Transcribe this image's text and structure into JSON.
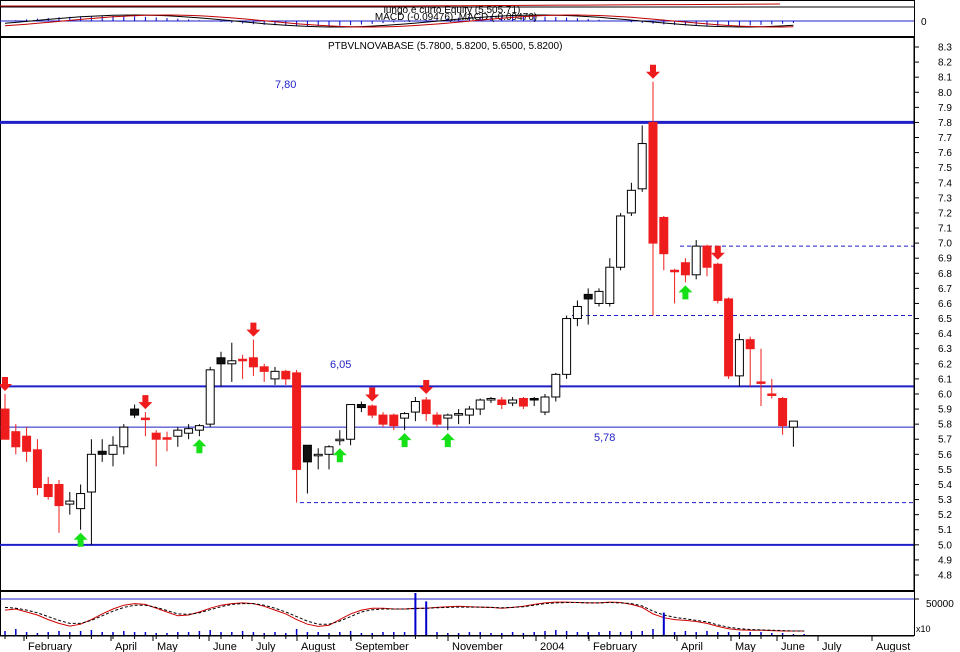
{
  "top_panel": {
    "title": "lungo e curto Equity (5,505.71)",
    "subtitle": "MACD (-0.09476), MACD (-0.09476)",
    "zero_label": "0",
    "colors": {
      "equity": "#c00000",
      "macd": "#000000",
      "hist": "#0000cc"
    }
  },
  "chart_data": [
    {
      "type": "candlestick",
      "title": "PTBVLNOVABASE (5.7800, 5.8200, 5.6500, 5.8200)",
      "ylim": [
        4.6,
        8.3
      ],
      "y_ticks": [
        4.8,
        4.9,
        5.0,
        5.1,
        5.2,
        5.3,
        5.4,
        5.5,
        5.6,
        5.7,
        5.8,
        5.9,
        6.0,
        6.1,
        6.2,
        6.3,
        6.4,
        6.5,
        6.6,
        6.7,
        6.8,
        6.9,
        7.0,
        7.1,
        7.2,
        7.3,
        7.4,
        7.5,
        7.6,
        7.7,
        7.8,
        7.9,
        8.0,
        8.1,
        8.2,
        8.3
      ],
      "x_labels": [
        "February",
        "April",
        "May",
        "June",
        "July",
        "August",
        "September",
        "November",
        "2004",
        "February",
        "April",
        "May",
        "June",
        "July",
        "August"
      ],
      "candles": [
        {
          "o": 5.9,
          "h": 6.0,
          "l": 5.7,
          "c": 5.7,
          "color": "red"
        },
        {
          "o": 5.75,
          "h": 5.8,
          "l": 5.6,
          "c": 5.65,
          "color": "red"
        },
        {
          "o": 5.72,
          "h": 5.78,
          "l": 5.55,
          "c": 5.62,
          "color": "red"
        },
        {
          "o": 5.63,
          "h": 5.7,
          "l": 5.33,
          "c": 5.38,
          "color": "red"
        },
        {
          "o": 5.4,
          "h": 5.45,
          "l": 5.3,
          "c": 5.32,
          "color": "red"
        },
        {
          "o": 5.4,
          "h": 5.43,
          "l": 5.08,
          "c": 5.26,
          "color": "red"
        },
        {
          "o": 5.29,
          "h": 5.35,
          "l": 5.2,
          "c": 5.27,
          "color": "white"
        },
        {
          "o": 5.24,
          "h": 5.4,
          "l": 5.1,
          "c": 5.34,
          "color": "white"
        },
        {
          "o": 5.35,
          "h": 5.7,
          "l": 5.0,
          "c": 5.6,
          "color": "white"
        },
        {
          "o": 5.6,
          "h": 5.7,
          "l": 5.55,
          "c": 5.62,
          "color": "black"
        },
        {
          "o": 5.6,
          "h": 5.72,
          "l": 5.52,
          "c": 5.66,
          "color": "white"
        },
        {
          "o": 5.65,
          "h": 5.8,
          "l": 5.6,
          "c": 5.78,
          "color": "white"
        },
        {
          "o": 5.9,
          "h": 5.93,
          "l": 5.84,
          "c": 5.86,
          "color": "black"
        },
        {
          "o": 5.84,
          "h": 5.88,
          "l": 5.72,
          "c": 5.84,
          "color": "red"
        },
        {
          "o": 5.74,
          "h": 5.76,
          "l": 5.52,
          "c": 5.7,
          "color": "red"
        },
        {
          "o": 5.71,
          "h": 5.75,
          "l": 5.62,
          "c": 5.7,
          "color": "red"
        },
        {
          "o": 5.72,
          "h": 5.78,
          "l": 5.65,
          "c": 5.76,
          "color": "white"
        },
        {
          "o": 5.74,
          "h": 5.8,
          "l": 5.7,
          "c": 5.77,
          "color": "white"
        },
        {
          "o": 5.76,
          "h": 5.8,
          "l": 5.72,
          "c": 5.79,
          "color": "white"
        },
        {
          "o": 5.8,
          "h": 6.18,
          "l": 5.78,
          "c": 6.16,
          "color": "white"
        },
        {
          "o": 6.24,
          "h": 6.28,
          "l": 6.05,
          "c": 6.2,
          "color": "black"
        },
        {
          "o": 6.2,
          "h": 6.34,
          "l": 6.08,
          "c": 6.22,
          "color": "white"
        },
        {
          "o": 6.23,
          "h": 6.26,
          "l": 6.1,
          "c": 6.22,
          "color": "red"
        },
        {
          "o": 6.24,
          "h": 6.36,
          "l": 6.12,
          "c": 6.18,
          "color": "red"
        },
        {
          "o": 6.18,
          "h": 6.2,
          "l": 6.08,
          "c": 6.15,
          "color": "red"
        },
        {
          "o": 6.1,
          "h": 6.18,
          "l": 6.06,
          "c": 6.15,
          "color": "white"
        },
        {
          "o": 6.15,
          "h": 6.16,
          "l": 6.06,
          "c": 6.1,
          "color": "red"
        },
        {
          "o": 6.14,
          "h": 6.16,
          "l": 5.28,
          "c": 5.5,
          "color": "red"
        },
        {
          "o": 5.55,
          "h": 5.66,
          "l": 5.34,
          "c": 5.66,
          "color": "black"
        },
        {
          "o": 5.6,
          "h": 5.64,
          "l": 5.5,
          "c": 5.6,
          "color": "white"
        },
        {
          "o": 5.6,
          "h": 5.66,
          "l": 5.5,
          "c": 5.65,
          "color": "white"
        },
        {
          "o": 5.7,
          "h": 5.76,
          "l": 5.66,
          "c": 5.7,
          "color": "white"
        },
        {
          "o": 5.7,
          "h": 5.93,
          "l": 5.66,
          "c": 5.93,
          "color": "white"
        },
        {
          "o": 5.93,
          "h": 5.95,
          "l": 5.88,
          "c": 5.91,
          "color": "black"
        },
        {
          "o": 5.92,
          "h": 5.93,
          "l": 5.84,
          "c": 5.86,
          "color": "red"
        },
        {
          "o": 5.86,
          "h": 5.88,
          "l": 5.78,
          "c": 5.8,
          "color": "red"
        },
        {
          "o": 5.86,
          "h": 5.87,
          "l": 5.76,
          "c": 5.79,
          "color": "red"
        },
        {
          "o": 5.84,
          "h": 5.88,
          "l": 5.76,
          "c": 5.87,
          "color": "white"
        },
        {
          "o": 5.88,
          "h": 5.98,
          "l": 5.82,
          "c": 5.95,
          "color": "white"
        },
        {
          "o": 5.96,
          "h": 5.98,
          "l": 5.82,
          "c": 5.87,
          "color": "red"
        },
        {
          "o": 5.86,
          "h": 5.88,
          "l": 5.78,
          "c": 5.8,
          "color": "red"
        },
        {
          "o": 5.84,
          "h": 5.87,
          "l": 5.76,
          "c": 5.86,
          "color": "white"
        },
        {
          "o": 5.86,
          "h": 5.9,
          "l": 5.8,
          "c": 5.87,
          "color": "white"
        },
        {
          "o": 5.86,
          "h": 5.92,
          "l": 5.8,
          "c": 5.9,
          "color": "white"
        },
        {
          "o": 5.9,
          "h": 5.97,
          "l": 5.86,
          "c": 5.96,
          "color": "white"
        },
        {
          "o": 5.96,
          "h": 5.98,
          "l": 5.94,
          "c": 5.97,
          "color": "white"
        },
        {
          "o": 5.96,
          "h": 5.98,
          "l": 5.9,
          "c": 5.93,
          "color": "red"
        },
        {
          "o": 5.94,
          "h": 5.98,
          "l": 5.92,
          "c": 5.96,
          "color": "white"
        },
        {
          "o": 5.97,
          "h": 5.98,
          "l": 5.9,
          "c": 5.92,
          "color": "red"
        },
        {
          "o": 5.97,
          "h": 5.98,
          "l": 5.92,
          "c": 5.96,
          "color": "black"
        },
        {
          "o": 5.88,
          "h": 6.0,
          "l": 5.86,
          "c": 5.98,
          "color": "white"
        },
        {
          "o": 5.98,
          "h": 6.14,
          "l": 5.95,
          "c": 6.13,
          "color": "white"
        },
        {
          "o": 6.13,
          "h": 6.52,
          "l": 6.1,
          "c": 6.5,
          "color": "white"
        },
        {
          "o": 6.5,
          "h": 6.62,
          "l": 6.45,
          "c": 6.58,
          "color": "white"
        },
        {
          "o": 6.66,
          "h": 6.7,
          "l": 6.46,
          "c": 6.63,
          "color": "black"
        },
        {
          "o": 6.6,
          "h": 6.7,
          "l": 6.58,
          "c": 6.68,
          "color": "white"
        },
        {
          "o": 6.6,
          "h": 6.9,
          "l": 6.58,
          "c": 6.84,
          "color": "white"
        },
        {
          "o": 6.84,
          "h": 7.2,
          "l": 6.82,
          "c": 7.18,
          "color": "white"
        },
        {
          "o": 7.2,
          "h": 7.4,
          "l": 7.18,
          "c": 7.35,
          "color": "white"
        },
        {
          "o": 7.36,
          "h": 7.78,
          "l": 7.34,
          "c": 7.66,
          "color": "white"
        },
        {
          "o": 7.8,
          "h": 8.07,
          "l": 6.52,
          "c": 7.0,
          "color": "red"
        },
        {
          "o": 7.17,
          "h": 7.18,
          "l": 6.82,
          "c": 6.93,
          "color": "red"
        },
        {
          "o": 6.82,
          "h": 6.83,
          "l": 6.6,
          "c": 6.81,
          "color": "red"
        },
        {
          "o": 6.87,
          "h": 6.9,
          "l": 6.74,
          "c": 6.79,
          "color": "red"
        },
        {
          "o": 6.79,
          "h": 7.02,
          "l": 6.76,
          "c": 6.98,
          "color": "white"
        },
        {
          "o": 6.98,
          "h": 6.99,
          "l": 6.78,
          "c": 6.84,
          "color": "red"
        },
        {
          "o": 6.86,
          "h": 6.87,
          "l": 6.6,
          "c": 6.62,
          "color": "red"
        },
        {
          "o": 6.63,
          "h": 6.64,
          "l": 6.1,
          "c": 6.12,
          "color": "red"
        },
        {
          "o": 6.12,
          "h": 6.4,
          "l": 6.05,
          "c": 6.36,
          "color": "white"
        },
        {
          "o": 6.36,
          "h": 6.38,
          "l": 6.05,
          "c": 6.3,
          "color": "red"
        },
        {
          "o": 6.08,
          "h": 6.3,
          "l": 5.92,
          "c": 6.07,
          "color": "red"
        },
        {
          "o": 6.0,
          "h": 6.1,
          "l": 5.97,
          "c": 5.99,
          "color": "red"
        },
        {
          "o": 5.97,
          "h": 5.98,
          "l": 5.73,
          "c": 5.79,
          "color": "red"
        },
        {
          "o": 5.78,
          "h": 5.82,
          "l": 5.65,
          "c": 5.82,
          "color": "white"
        }
      ],
      "horizontal_lines": [
        {
          "value": 7.8,
          "label": "7,80",
          "style": "solid-thick"
        },
        {
          "value": 6.05,
          "label": "6,05",
          "style": "solid"
        },
        {
          "value": 5.78,
          "label": "5,78",
          "style": "solid-thin"
        },
        {
          "value": 5.0,
          "label": "",
          "style": "solid"
        }
      ],
      "dashed_levels": [
        6.98,
        6.52,
        5.28
      ],
      "sell_signals": [
        0,
        13,
        23,
        34,
        39,
        60,
        66
      ],
      "buy_signals": [
        7,
        18,
        31,
        37,
        41,
        63
      ],
      "colors": {
        "up": "#ffffff",
        "down": "#ee1c1c",
        "neutral": "#111111",
        "levels": "#1f1fc8",
        "sell": "#ee1c1c",
        "buy": "#16e016"
      }
    },
    {
      "type": "line",
      "title": "",
      "y_ticks": [
        50000
      ],
      "series": [
        {
          "style": "solid",
          "color": "#d00000",
          "values": [
            0.55,
            0.58,
            0.5,
            0.42,
            0.3,
            0.2,
            0.13,
            0.18,
            0.3,
            0.45,
            0.58,
            0.68,
            0.72,
            0.7,
            0.6,
            0.5,
            0.4,
            0.42,
            0.5,
            0.6,
            0.68,
            0.72,
            0.74,
            0.72,
            0.65,
            0.55,
            0.45,
            0.3,
            0.18,
            0.12,
            0.15,
            0.3,
            0.45,
            0.55,
            0.6,
            0.6,
            0.58,
            0.58,
            0.6,
            0.6,
            0.62,
            0.64,
            0.65,
            0.64,
            0.63,
            0.62,
            0.6,
            0.62,
            0.65,
            0.7,
            0.74,
            0.76,
            0.76,
            0.75,
            0.74,
            0.74,
            0.76,
            0.75,
            0.7,
            0.62,
            0.45,
            0.35,
            0.3,
            0.28,
            0.25,
            0.2,
            0.12,
            0.06,
            0.03,
            0.02,
            0.02,
            0.01,
            0.0,
            0.0,
            0.0
          ]
        },
        {
          "style": "dashed",
          "color": "#000000",
          "values": [
            0.62,
            0.6,
            0.55,
            0.48,
            0.38,
            0.28,
            0.2,
            0.2,
            0.28,
            0.4,
            0.52,
            0.62,
            0.68,
            0.68,
            0.62,
            0.54,
            0.45,
            0.44,
            0.48,
            0.56,
            0.64,
            0.7,
            0.72,
            0.72,
            0.68,
            0.6,
            0.5,
            0.38,
            0.26,
            0.18,
            0.18,
            0.26,
            0.38,
            0.5,
            0.56,
            0.58,
            0.58,
            0.58,
            0.59,
            0.6,
            0.61,
            0.62,
            0.63,
            0.63,
            0.63,
            0.62,
            0.61,
            0.62,
            0.64,
            0.68,
            0.72,
            0.74,
            0.75,
            0.75,
            0.74,
            0.74,
            0.75,
            0.74,
            0.72,
            0.66,
            0.52,
            0.42,
            0.36,
            0.32,
            0.28,
            0.24,
            0.16,
            0.1,
            0.06,
            0.04,
            0.03,
            0.02,
            0.01,
            0.0,
            0.0
          ]
        }
      ],
      "volume_bars": [
        0.4,
        0.6,
        0.3,
        0.2,
        0.3,
        0.4,
        0.3,
        0.4,
        0.5,
        0.3,
        0.3,
        0.4,
        0.3,
        0.3,
        0.2,
        0.2,
        0.3,
        0.3,
        0.4,
        0.5,
        0.3,
        0.3,
        0.4,
        0.3,
        0.2,
        0.3,
        0.2,
        0.6,
        0.3,
        0.3,
        0.2,
        0.3,
        0.4,
        0.2,
        0.2,
        0.3,
        0.3,
        0.3,
        0.4,
        0.3,
        0.3,
        0.2,
        0.2,
        0.3,
        0.3,
        0.2,
        0.2,
        0.3,
        0.2,
        0.3,
        0.4,
        0.5,
        0.4,
        0.3,
        0.3,
        0.3,
        0.4,
        0.3,
        0.4,
        0.4,
        0.6,
        0.5,
        0.3,
        0.4,
        0.3,
        0.4,
        0.3,
        0.3,
        0.3,
        0.3,
        0.3,
        0.2,
        0.2,
        0.1,
        0.1
      ],
      "spikes": [
        {
          "index": 38,
          "value": 3.0
        },
        {
          "index": 39,
          "value": 2.4
        },
        {
          "index": 61,
          "value": 1.6
        }
      ],
      "multiplier_label": "x10",
      "colors": {
        "volume": "#0000cc"
      }
    }
  ]
}
